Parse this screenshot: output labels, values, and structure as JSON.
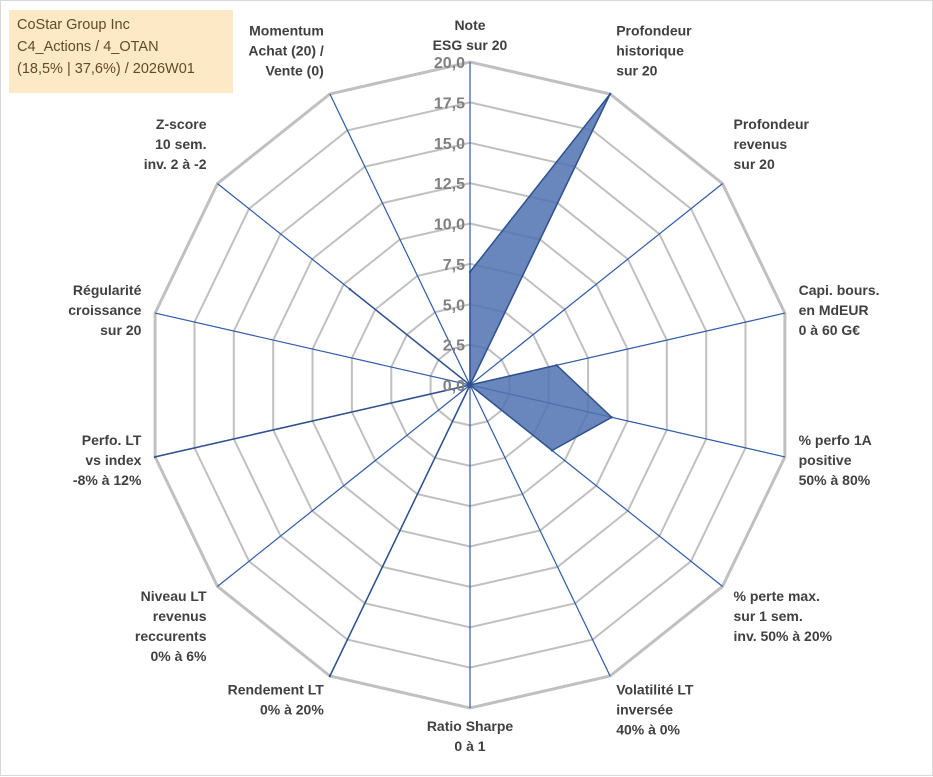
{
  "info_box": {
    "company": "CoStar Group Inc",
    "portfolio": "C4_Actions / 4_OTAN",
    "stats": "(18,5% | 37,6%) / 2026W01"
  },
  "colors": {
    "grid": "#c0c0c0",
    "spoke": "#2e5aa8",
    "fill": "#4f72b0",
    "stroke": "#2f528f",
    "tick": "#808080",
    "label": "#404040",
    "info_bg": "#fde9c6"
  },
  "chart_data": {
    "type": "radar",
    "rlim": [
      0,
      20
    ],
    "tick_step": 2.5,
    "tick_labels": [
      "0,0",
      "2,5",
      "5,0",
      "7,5",
      "10,0",
      "12,5",
      "15,0",
      "17,5",
      "20,0"
    ],
    "grid": true,
    "axes": [
      [
        "Note",
        "ESG sur 20"
      ],
      [
        "Profondeur",
        "historique",
        "sur 20"
      ],
      [
        "Profondeur",
        "revenus",
        "sur 20"
      ],
      [
        "Capi. bours.",
        "en MdEUR",
        "0 à 60 G€"
      ],
      [
        "% perfo 1A",
        "positive",
        "50% à 80%"
      ],
      [
        "% perte max.",
        "sur 1 sem.",
        "inv. 50% à 20%"
      ],
      [
        "Volatilité LT",
        "inversée",
        "40% à 0%"
      ],
      [
        "Ratio Sharpe",
        "0 à 1"
      ],
      [
        "Rendement LT",
        "0% à 20%"
      ],
      [
        "Niveau LT",
        "revenus",
        "reccurents",
        "0% à 6%"
      ],
      [
        "Perfo. LT",
        "vs index",
        "-8% à 12%"
      ],
      [
        "Régularité",
        "croissance",
        "sur 20"
      ],
      [
        "Z-score",
        "10 sem.",
        "inv. 2 à -2"
      ],
      [
        "Momentum",
        "Achat (20) /",
        "Vente (0)"
      ]
    ],
    "values": [
      7,
      20,
      0,
      5.5,
      9,
      6.5,
      0,
      0,
      20,
      0,
      20,
      0,
      9.5,
      0
    ]
  }
}
